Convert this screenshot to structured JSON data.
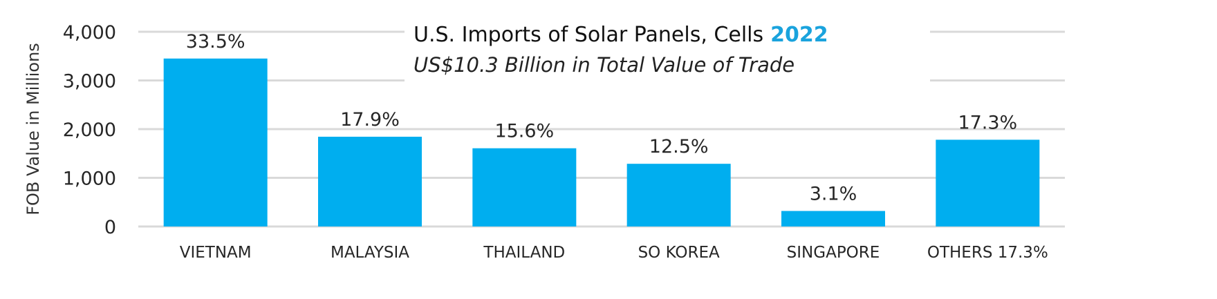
{
  "chart_data": {
    "type": "bar",
    "title": "U.S. Imports of Solar Panels, Cells",
    "title_year": "2022",
    "subtitle": "US$10.3 Billion in Total Value of Trade",
    "xlabel": "",
    "ylabel": "FOB Value in Millions",
    "ylim": [
      0,
      4000
    ],
    "yticks": [
      "0",
      "1,000",
      "2,000",
      "3,000",
      "4,000"
    ],
    "grid": true,
    "categories": [
      "VIETNAM",
      "MALAYSIA",
      "THAILAND",
      "SO KOREA",
      "SINGAPORE",
      "OTHERS 17.3%"
    ],
    "values": [
      3450,
      1844,
      1607,
      1288,
      319,
      1782
    ],
    "data_labels": [
      "33.5%",
      "17.9%",
      "15.6%",
      "12.5%",
      "3.1%",
      "17.3%"
    ],
    "colors": {
      "bar": "#00AEEF",
      "year": "#1AA3DD",
      "grid": "#D9D9D9"
    }
  }
}
